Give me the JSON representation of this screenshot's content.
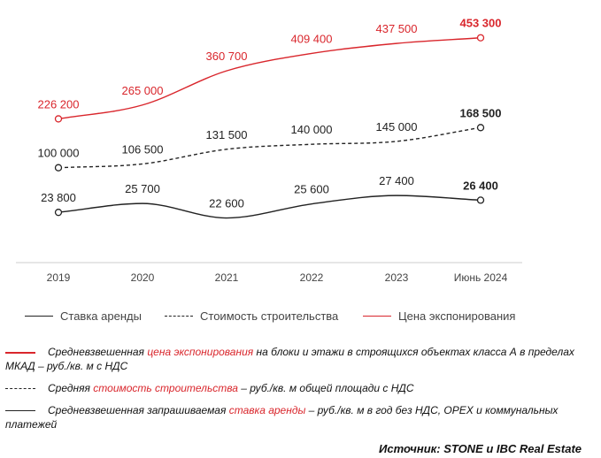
{
  "chart_data": {
    "type": "line",
    "categories": [
      "2019",
      "2020",
      "2021",
      "2022",
      "2023",
      "Июнь 2024"
    ],
    "series": [
      {
        "name": "Ставка аренды",
        "values": [
          23800,
          25700,
          22600,
          25600,
          27400,
          26400
        ],
        "labels": [
          "23 800",
          "25 700",
          "22 600",
          "25 600",
          "27 400",
          "26 400"
        ],
        "color": "#222222",
        "style": "solid"
      },
      {
        "name": "Стоимость строительства",
        "values": [
          100000,
          106500,
          131500,
          140000,
          145000,
          168500
        ],
        "labels": [
          "100 000",
          "106 500",
          "131 500",
          "140 000",
          "145 000",
          "168 500"
        ],
        "color": "#222222",
        "style": "dashed"
      },
      {
        "name": "Цена экспонирования",
        "values": [
          226200,
          265000,
          360700,
          409400,
          437500,
          453300
        ],
        "labels": [
          "226 200",
          "265 000",
          "360 700",
          "409 400",
          "437 500",
          "453 300"
        ],
        "color": "#d9262c",
        "style": "solid"
      }
    ],
    "grid": false,
    "legend_position": "bottom"
  },
  "legend": {
    "rent": "Ставка аренды",
    "construction": "Стоимость строительства",
    "price": "Цена экспонирования"
  },
  "notes": {
    "n1_pre": "Средневзвешенная ",
    "n1_hl": "цена экспонирования",
    "n1_post": " на блоки и этажи в строящихся объектах класса А в пределах МКАД – руб./кв. м с НДС",
    "n2_pre": "Средняя ",
    "n2_hl": "стоимость строительства",
    "n2_post": " – руб./кв. м общей площади с НДС",
    "n3_pre": "Средневзвешенная запрашиваемая ",
    "n3_hl": "ставка аренды",
    "n3_post": " – руб./кв. м в год без НДС, OPEX и коммунальных платежей"
  },
  "source": "Источник: STONE и IBC Real Estate",
  "colors": {
    "accent": "#d9262c",
    "text": "#222222",
    "axis": "#cccccc"
  }
}
